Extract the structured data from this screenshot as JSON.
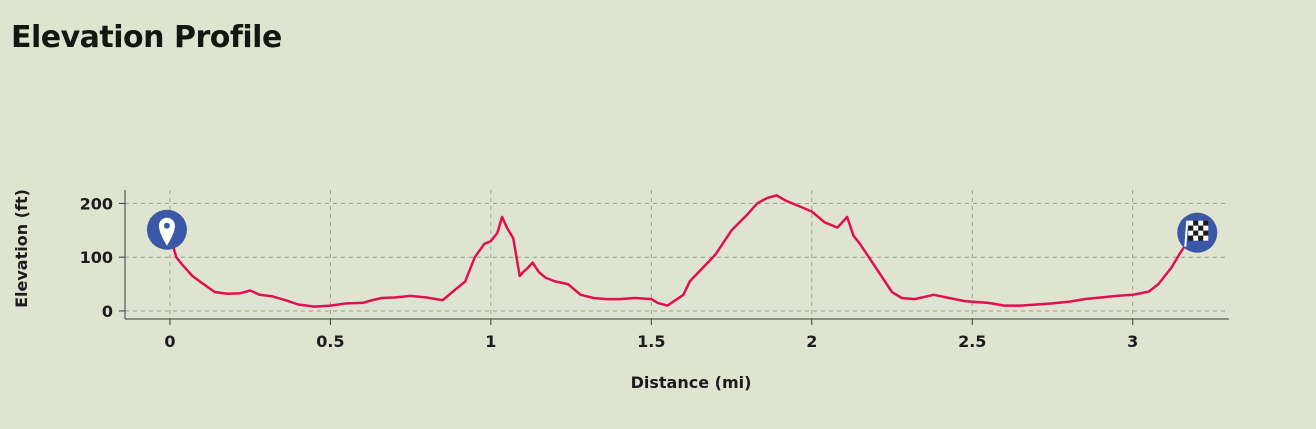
{
  "header": {
    "title": "Elevation Profile"
  },
  "chart_data": {
    "type": "line",
    "title": "Elevation Profile",
    "xlabel": "Distance (mi)",
    "ylabel": "Elevation (ft)",
    "xlim": [
      -0.14,
      3.3
    ],
    "ylim": [
      -15,
      225
    ],
    "xticks": [
      0,
      0.5,
      1,
      1.5,
      2,
      2.5,
      3
    ],
    "xtick_labels": [
      "0",
      "0.5",
      "1",
      "1.5",
      "2",
      "2.5",
      "3"
    ],
    "yticks": [
      0,
      100,
      200
    ],
    "ytick_labels": [
      "0",
      "100",
      "200"
    ],
    "grid": true,
    "line_color": "#e0104f",
    "marker_color": "#3a58a6",
    "start_marker": {
      "x": 0,
      "y": 140,
      "icon": "map-pin-icon"
    },
    "end_marker": {
      "x": 3.17,
      "y": 127,
      "icon": "checkered-flag-icon"
    },
    "series": [
      {
        "x": [
          0,
          0.02,
          0.04,
          0.07,
          0.1,
          0.14,
          0.18,
          0.22,
          0.25,
          0.28,
          0.32,
          0.36,
          0.4,
          0.45,
          0.5,
          0.55,
          0.6,
          0.63,
          0.66,
          0.7,
          0.75,
          0.8,
          0.85,
          0.88,
          0.92,
          0.95,
          0.98,
          1.0,
          1.02,
          1.035,
          1.05,
          1.07,
          1.09,
          1.1,
          1.115,
          1.13,
          1.15,
          1.17,
          1.2,
          1.24,
          1.28,
          1.32,
          1.36,
          1.4,
          1.45,
          1.5,
          1.52,
          1.55,
          1.6,
          1.62,
          1.66,
          1.7,
          1.75,
          1.8,
          1.83,
          1.86,
          1.89,
          1.92,
          1.96,
          2.0,
          2.04,
          2.08,
          2.11,
          2.13,
          2.15,
          2.2,
          2.25,
          2.28,
          2.32,
          2.38,
          2.42,
          2.48,
          2.55,
          2.6,
          2.65,
          2.7,
          2.75,
          2.8,
          2.85,
          2.9,
          2.95,
          3.0,
          3.05,
          3.08,
          3.12,
          3.15,
          3.17
        ],
        "y": [
          140,
          100,
          85,
          65,
          52,
          35,
          32,
          33,
          38,
          30,
          27,
          20,
          12,
          8,
          10,
          14,
          15,
          20,
          24,
          25,
          28,
          25,
          20,
          35,
          55,
          100,
          125,
          130,
          145,
          175,
          155,
          135,
          65,
          72,
          80,
          90,
          72,
          62,
          55,
          50,
          30,
          24,
          22,
          22,
          24,
          22,
          15,
          10,
          30,
          55,
          80,
          105,
          150,
          180,
          200,
          210,
          215,
          205,
          195,
          185,
          165,
          155,
          175,
          140,
          125,
          80,
          35,
          24,
          22,
          30,
          25,
          18,
          15,
          10,
          10,
          12,
          14,
          17,
          22,
          25,
          28,
          30,
          36,
          50,
          80,
          110,
          127
        ]
      }
    ]
  }
}
